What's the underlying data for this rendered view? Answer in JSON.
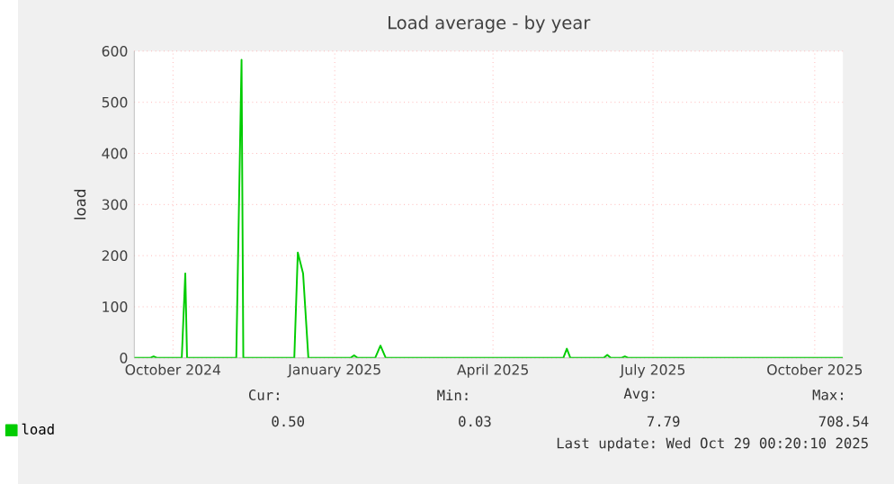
{
  "chart_data": {
    "type": "line",
    "title": "Load average - by year",
    "ylabel": "load",
    "xlim": [
      "2024-09-09",
      "2025-10-17"
    ],
    "ylim": [
      0,
      600
    ],
    "xticks": [
      {
        "value": "2024-10-01",
        "label": "October 2024"
      },
      {
        "value": "2025-01-01",
        "label": "January 2025"
      },
      {
        "value": "2025-04-01",
        "label": "April 2025"
      },
      {
        "value": "2025-07-01",
        "label": "July 2025"
      },
      {
        "value": "2025-10-01",
        "label": "October 2025"
      }
    ],
    "yticks": [
      0,
      100,
      200,
      300,
      400,
      500,
      600
    ],
    "grid": true,
    "legend": "bottom left",
    "x": [
      "2024-09-09",
      "2024-09-18",
      "2024-09-20",
      "2024-09-22",
      "2024-10-06",
      "2024-10-08",
      "2024-10-09",
      "2024-11-06",
      "2024-11-09",
      "2024-11-10",
      "2024-12-09",
      "2024-12-11",
      "2024-12-14",
      "2024-12-17",
      "2025-01-10",
      "2025-01-12",
      "2025-01-14",
      "2025-01-24",
      "2025-01-27",
      "2025-01-30",
      "2025-05-11",
      "2025-05-13",
      "2025-05-15",
      "2025-06-03",
      "2025-06-05",
      "2025-06-07",
      "2025-06-13",
      "2025-06-15",
      "2025-06-17",
      "2025-10-17"
    ],
    "series": [
      {
        "name": "load",
        "color": "#00cc00",
        "values": [
          0,
          0,
          3,
          0,
          0,
          165,
          0,
          0,
          583,
          0,
          0,
          206,
          165,
          0,
          0,
          5,
          0,
          0,
          24,
          0,
          0,
          18,
          0,
          0,
          6,
          0,
          0,
          3,
          0,
          0
        ]
      }
    ],
    "annotations": [
      "Cur:",
      "Min:",
      "Avg:",
      "Max:",
      "0.50",
      "0.03",
      "7.79",
      "708.54",
      "Last update: Wed Oct 29 00:20:10 2025"
    ]
  }
}
